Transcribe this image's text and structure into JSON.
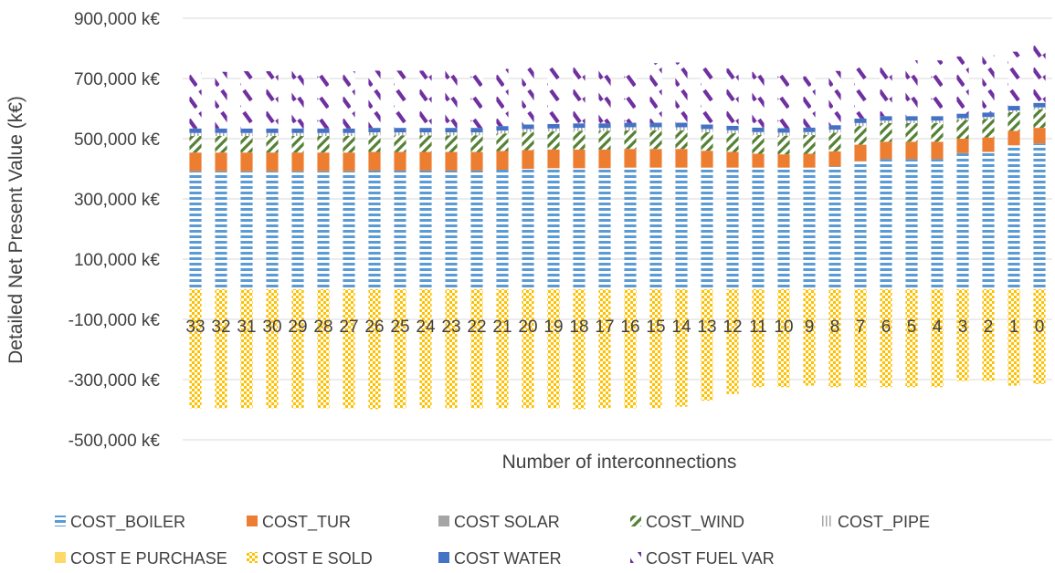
{
  "chart_data": {
    "type": "bar",
    "stacked": true,
    "title": "",
    "xlabel": "Number of interconnections",
    "ylabel": "Detailed Net Present Value (k€)",
    "ylim": [
      -500000,
      900000
    ],
    "yticks": [
      900000,
      700000,
      500000,
      300000,
      100000,
      -100000,
      -300000,
      -500000
    ],
    "ytick_labels": [
      "900,000  k€",
      "700,000  k€",
      "500,000  k€",
      "300,000  k€",
      "100,000  k€",
      "-100,000  k€",
      "-300,000  k€",
      "-500,000  k€"
    ],
    "grid": true,
    "legend_position": "bottom",
    "categories": [
      "33",
      "32",
      "31",
      "30",
      "29",
      "28",
      "27",
      "26",
      "25",
      "24",
      "23",
      "22",
      "21",
      "20",
      "19",
      "18",
      "17",
      "16",
      "15",
      "14",
      "13",
      "12",
      "11",
      "10",
      "9",
      "8",
      "7",
      "6",
      "5",
      "4",
      "3",
      "2",
      "1",
      "0"
    ],
    "series": [
      {
        "name": "COST_BOILER",
        "color": "#5B9BD5",
        "pattern": "hstripes",
        "values": [
          392000,
          392000,
          392000,
          392000,
          392000,
          392000,
          392000,
          394000,
          394000,
          394000,
          394000,
          394000,
          397000,
          400000,
          402000,
          402000,
          402000,
          404000,
          404000,
          404000,
          404000,
          404000,
          404000,
          404000,
          404000,
          408000,
          425000,
          432000,
          432000,
          432000,
          452000,
          456000,
          478000,
          484000
        ]
      },
      {
        "name": "COST_TUR",
        "color": "#ED7D31",
        "pattern": "solid",
        "values": [
          62000,
          62000,
          62000,
          62000,
          62000,
          62000,
          62000,
          62000,
          62000,
          62000,
          62000,
          62000,
          62000,
          62000,
          62000,
          62000,
          62000,
          62000,
          62000,
          62000,
          56000,
          52000,
          46000,
          44000,
          46000,
          50000,
          55000,
          58000,
          58000,
          58000,
          48000,
          48000,
          48000,
          52000
        ]
      },
      {
        "name": "COST SOLAR",
        "color": "#A5A5A5",
        "pattern": "solid",
        "values": [
          0,
          0,
          0,
          0,
          0,
          0,
          0,
          0,
          0,
          0,
          0,
          0,
          0,
          0,
          0,
          0,
          0,
          0,
          0,
          0,
          0,
          0,
          0,
          0,
          0,
          0,
          0,
          0,
          0,
          0,
          0,
          0,
          0,
          0
        ]
      },
      {
        "name": "COST_WIND",
        "color": "#548235",
        "pattern": "diag",
        "values": [
          55000,
          55000,
          55000,
          55000,
          55000,
          55000,
          55000,
          55000,
          55000,
          55000,
          55000,
          55000,
          58000,
          60000,
          60000,
          62000,
          62000,
          62000,
          62000,
          62000,
          62000,
          62000,
          62000,
          62000,
          62000,
          62000,
          62000,
          62000,
          62000,
          62000,
          62000,
          62000,
          62000,
          62000
        ]
      },
      {
        "name": "COST_PIPE",
        "color": "#A5A5A5",
        "pattern": "vlines",
        "values": [
          10000,
          10000,
          10000,
          10000,
          10000,
          10000,
          10000,
          10000,
          10000,
          10000,
          10000,
          10000,
          10000,
          10000,
          10000,
          10000,
          10000,
          10000,
          10000,
          10000,
          10000,
          10000,
          10000,
          10000,
          10000,
          10000,
          10000,
          8000,
          8000,
          8000,
          6000,
          6000,
          6000,
          6000
        ]
      },
      {
        "name": "COST E  PURCHASE",
        "color": "#FFD966",
        "pattern": "solid",
        "values": [
          0,
          0,
          0,
          0,
          0,
          0,
          0,
          0,
          0,
          0,
          0,
          0,
          0,
          0,
          0,
          0,
          0,
          0,
          0,
          0,
          0,
          0,
          0,
          0,
          0,
          0,
          0,
          0,
          0,
          0,
          0,
          0,
          0,
          0
        ]
      },
      {
        "name": "COST E  SOLD",
        "color": "#FFC000",
        "pattern": "check",
        "values": [
          -395000,
          -395000,
          -395000,
          -395000,
          -395000,
          -395000,
          -395000,
          -398000,
          -395000,
          -395000,
          -395000,
          -395000,
          -395000,
          -395000,
          -395000,
          -398000,
          -395000,
          -395000,
          -395000,
          -390000,
          -370000,
          -348000,
          -325000,
          -325000,
          -320000,
          -325000,
          -325000,
          -325000,
          -325000,
          -325000,
          -305000,
          -305000,
          -320000,
          -315000
        ]
      },
      {
        "name": "COST  WATER",
        "color": "#4472C4",
        "pattern": "solid",
        "values": [
          15000,
          15000,
          15000,
          15000,
          15000,
          15000,
          15000,
          15000,
          15000,
          15000,
          15000,
          15000,
          15000,
          15000,
          15000,
          15000,
          15000,
          15000,
          15000,
          15000,
          15000,
          15000,
          15000,
          15000,
          15000,
          15000,
          15000,
          15000,
          15000,
          15000,
          15000,
          15000,
          15000,
          15000
        ]
      },
      {
        "name": "COST  FUEL  VAR",
        "color": "#7030A0",
        "pattern": "dash",
        "values": [
          185000,
          188000,
          190000,
          190000,
          190000,
          190000,
          190000,
          190000,
          190000,
          190000,
          190000,
          190000,
          190000,
          190000,
          190000,
          192000,
          190000,
          190000,
          198000,
          200000,
          190000,
          190000,
          185000,
          180000,
          170000,
          180000,
          175000,
          185000,
          185000,
          185000,
          190000,
          190000,
          180000,
          198000
        ]
      }
    ]
  }
}
